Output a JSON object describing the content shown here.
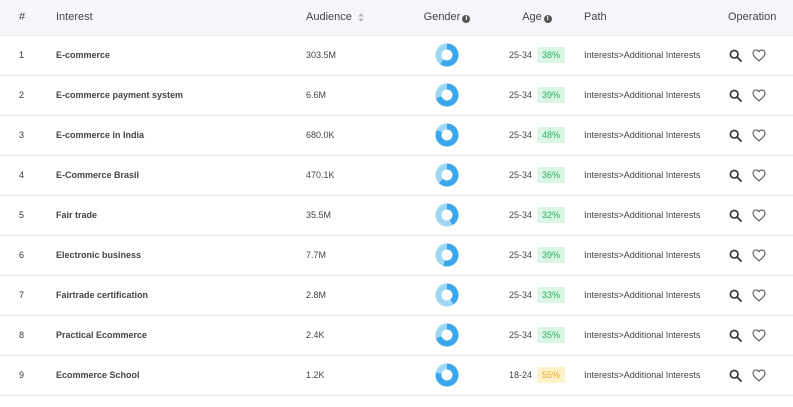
{
  "header": {
    "index": "#",
    "interest": "Interest",
    "audience": "Audience",
    "gender": "Gender",
    "age": "Age",
    "path": "Path",
    "operation": "Operation"
  },
  "colors": {
    "donut_main": "#3ca6ec",
    "donut_light": "#9fd7f7"
  },
  "rows": [
    {
      "index": "1",
      "interest": "E-commerce",
      "audience": "303.5M",
      "gender_share": 0.6,
      "age_range": "25-34",
      "age_pct": "38%",
      "age_tone": "green",
      "path": "Interests>Additional Interests"
    },
    {
      "index": "2",
      "interest": "E-commerce payment system",
      "audience": "6.6M",
      "gender_share": 0.7,
      "age_range": "25-34",
      "age_pct": "39%",
      "age_tone": "green",
      "path": "Interests>Additional Interests"
    },
    {
      "index": "3",
      "interest": "E-commerce in India",
      "audience": "680.0K",
      "gender_share": 0.82,
      "age_range": "25-34",
      "age_pct": "48%",
      "age_tone": "green",
      "path": "Interests>Additional Interests"
    },
    {
      "index": "4",
      "interest": "E-Commerce Brasil",
      "audience": "470.1K",
      "gender_share": 0.62,
      "age_range": "25-34",
      "age_pct": "36%",
      "age_tone": "green",
      "path": "Interests>Additional Interests"
    },
    {
      "index": "5",
      "interest": "Fair trade",
      "audience": "35.5M",
      "gender_share": 0.42,
      "age_range": "25-34",
      "age_pct": "32%",
      "age_tone": "green",
      "path": "Interests>Additional Interests"
    },
    {
      "index": "6",
      "interest": "Electronic business",
      "audience": "7.7M",
      "gender_share": 0.55,
      "age_range": "25-34",
      "age_pct": "39%",
      "age_tone": "green",
      "path": "Interests>Additional Interests"
    },
    {
      "index": "7",
      "interest": "Fairtrade certification",
      "audience": "2.8M",
      "gender_share": 0.4,
      "age_range": "25-34",
      "age_pct": "33%",
      "age_tone": "green",
      "path": "Interests>Additional Interests"
    },
    {
      "index": "8",
      "interest": "Practical Ecommerce",
      "audience": "2.4K",
      "gender_share": 0.7,
      "age_range": "25-34",
      "age_pct": "35%",
      "age_tone": "green",
      "path": "Interests>Additional Interests"
    },
    {
      "index": "9",
      "interest": "Ecommerce School",
      "audience": "1.2K",
      "gender_share": 0.78,
      "age_range": "18-24",
      "age_pct": "55%",
      "age_tone": "yellow",
      "path": "Interests>Additional Interests"
    }
  ]
}
